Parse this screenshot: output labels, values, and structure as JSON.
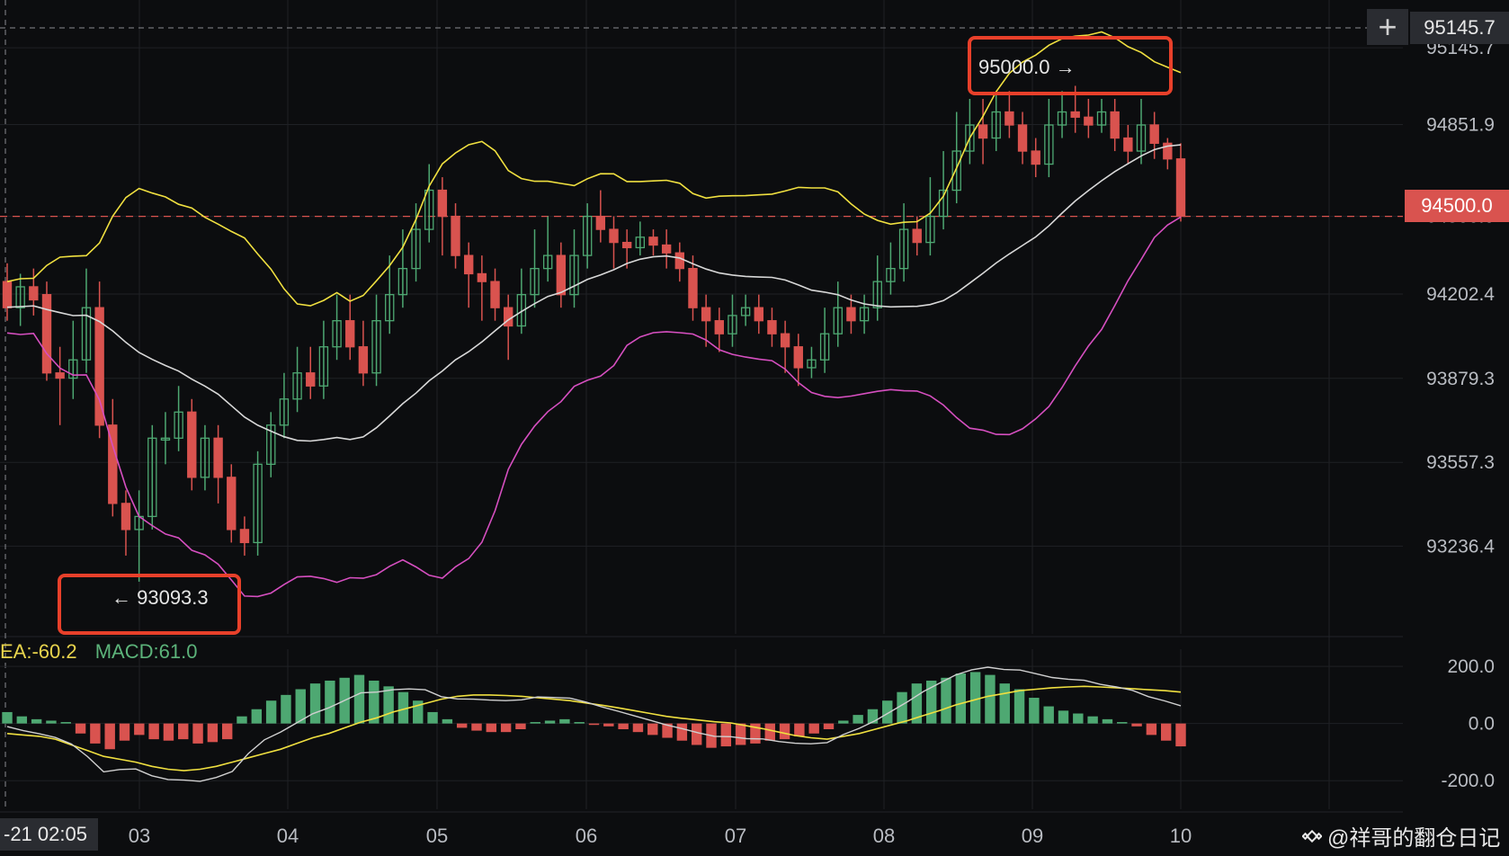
{
  "price_axis": {
    "ticks": [
      "95145.7",
      "94851.9",
      "94500.0",
      "94202.4",
      "93879.3",
      "93557.3",
      "93236.4"
    ]
  },
  "macd_axis": {
    "ticks": [
      "200.0",
      "0.0",
      "-200.0"
    ]
  },
  "time_axis": {
    "cursor_label": "-21 02:05",
    "ticks": [
      "03",
      "04",
      "05",
      "06",
      "07",
      "08",
      "09",
      "10"
    ]
  },
  "current_price_tag": "94500.0",
  "top_price_tag": "95145.7",
  "crosshair_icon": "plus-icon",
  "macd_legend": {
    "dea": "EA:-60.2",
    "macd": "MACD:61.0",
    "dea_color": "#e8d44d",
    "macd_color": "#5cb37a"
  },
  "watermark": "@祥哥的翻仓日记",
  "colors": {
    "up": "#4ea872",
    "down": "#d9534f",
    "bb_upper": "#f0e040",
    "bb_mid": "#d8d8d8",
    "bb_lower": "#d64fc0",
    "callout": "#e8402a"
  },
  "chart_data": [
    {
      "type": "candlestick",
      "title": "",
      "ylim": [
        92900,
        95260
      ],
      "x_labels": [
        "03",
        "04",
        "05",
        "06",
        "07",
        "08",
        "09",
        "10"
      ],
      "overlays": [
        "bollinger-upper",
        "bollinger-middle",
        "bollinger-lower"
      ],
      "annotations": [
        {
          "text": "95000.0 →",
          "value": 95000.0
        },
        {
          "text": "← 93093.3",
          "value": 93093.3
        }
      ],
      "candles": [
        [
          94250,
          94150,
          94320,
          94100
        ],
        [
          94150,
          94230,
          94280,
          94080
        ],
        [
          94230,
          94180,
          94300,
          94120
        ],
        [
          94200,
          93900,
          94250,
          93870
        ],
        [
          93900,
          93880,
          94000,
          93700
        ],
        [
          93880,
          93950,
          94100,
          93800
        ],
        [
          93950,
          94150,
          94300,
          93900
        ],
        [
          94150,
          93700,
          94250,
          93650
        ],
        [
          93700,
          93400,
          93800,
          93350
        ],
        [
          93400,
          93300,
          93450,
          93200
        ],
        [
          93300,
          93350,
          93450,
          93100
        ],
        [
          93350,
          93650,
          93700,
          93300
        ],
        [
          93650,
          93650,
          93750,
          93550
        ],
        [
          93650,
          93750,
          93850,
          93600
        ],
        [
          93750,
          93500,
          93800,
          93450
        ],
        [
          93500,
          93650,
          93700,
          93450
        ],
        [
          93650,
          93500,
          93700,
          93400
        ],
        [
          93500,
          93300,
          93550,
          93250
        ],
        [
          93300,
          93250,
          93350,
          93200
        ],
        [
          93250,
          93550,
          93600,
          93200
        ],
        [
          93550,
          93700,
          93750,
          93500
        ],
        [
          93700,
          93800,
          93900,
          93650
        ],
        [
          93800,
          93900,
          94000,
          93750
        ],
        [
          93900,
          93850,
          94000,
          93800
        ],
        [
          93850,
          94000,
          94100,
          93800
        ],
        [
          94000,
          94100,
          94200,
          93950
        ],
        [
          94100,
          94000,
          94200,
          93950
        ],
        [
          94000,
          93900,
          94100,
          93850
        ],
        [
          93900,
          94100,
          94200,
          93850
        ],
        [
          94100,
          94200,
          94350,
          94050
        ],
        [
          94200,
          94300,
          94450,
          94150
        ],
        [
          94300,
          94450,
          94550,
          94250
        ],
        [
          94450,
          94600,
          94700,
          94400
        ],
        [
          94600,
          94500,
          94650,
          94350
        ],
        [
          94500,
          94350,
          94550,
          94300
        ],
        [
          94350,
          94280,
          94400,
          94150
        ],
        [
          94280,
          94250,
          94350,
          94100
        ],
        [
          94250,
          94150,
          94300,
          94100
        ],
        [
          94150,
          94080,
          94200,
          93950
        ],
        [
          94080,
          94200,
          94300,
          94050
        ],
        [
          94200,
          94300,
          94450,
          94150
        ],
        [
          94300,
          94350,
          94500,
          94250
        ],
        [
          94350,
          94200,
          94400,
          94150
        ],
        [
          94200,
          94350,
          94450,
          94150
        ],
        [
          94350,
          94500,
          94550,
          94300
        ],
        [
          94500,
          94450,
          94600,
          94400
        ],
        [
          94450,
          94400,
          94500,
          94300
        ],
        [
          94400,
          94380,
          94450,
          94300
        ],
        [
          94380,
          94420,
          94480,
          94350
        ],
        [
          94420,
          94390,
          94450,
          94350
        ],
        [
          94390,
          94360,
          94450,
          94300
        ],
        [
          94360,
          94300,
          94400,
          94250
        ],
        [
          94300,
          94150,
          94350,
          94100
        ],
        [
          94150,
          94100,
          94200,
          94000
        ],
        [
          94100,
          94050,
          94150,
          93980
        ],
        [
          94050,
          94120,
          94200,
          94000
        ],
        [
          94120,
          94150,
          94200,
          94080
        ],
        [
          94150,
          94100,
          94200,
          94050
        ],
        [
          94100,
          94050,
          94150,
          94000
        ],
        [
          94050,
          94000,
          94100,
          93900
        ],
        [
          94000,
          93920,
          94050,
          93850
        ],
        [
          93920,
          93950,
          94000,
          93880
        ],
        [
          93950,
          94050,
          94150,
          93900
        ],
        [
          94050,
          94150,
          94250,
          94000
        ],
        [
          94150,
          94100,
          94200,
          94050
        ],
        [
          94100,
          94150,
          94200,
          94050
        ],
        [
          94150,
          94250,
          94350,
          94100
        ],
        [
          94250,
          94300,
          94400,
          94200
        ],
        [
          94300,
          94450,
          94550,
          94250
        ],
        [
          94450,
          94400,
          94500,
          94350
        ],
        [
          94400,
          94500,
          94650,
          94350
        ],
        [
          94500,
          94600,
          94750,
          94450
        ],
        [
          94600,
          94750,
          94900,
          94550
        ],
        [
          94750,
          94850,
          94950,
          94700
        ],
        [
          94850,
          94800,
          94950,
          94700
        ],
        [
          94800,
          94900,
          94980,
          94750
        ],
        [
          94900,
          94850,
          94980,
          94800
        ],
        [
          94850,
          94750,
          94900,
          94700
        ],
        [
          94750,
          94700,
          94800,
          94650
        ],
        [
          94700,
          94850,
          94950,
          94650
        ],
        [
          94850,
          94900,
          94980,
          94800
        ],
        [
          94900,
          94880,
          95000,
          94820
        ],
        [
          94880,
          94850,
          94950,
          94800
        ],
        [
          94850,
          94900,
          94950,
          94820
        ],
        [
          94900,
          94800,
          94950,
          94750
        ],
        [
          94800,
          94750,
          94850,
          94700
        ],
        [
          94750,
          94850,
          94950,
          94700
        ],
        [
          94850,
          94780,
          94900,
          94720
        ],
        [
          94780,
          94720,
          94800,
          94680
        ],
        [
          94720,
          94500,
          94780,
          94480
        ]
      ]
    },
    {
      "type": "macd",
      "title": "",
      "ylim": [
        -300,
        260
      ],
      "series": [
        {
          "name": "DEA",
          "values": [
            -35,
            -40,
            -45,
            -55,
            -75,
            -95,
            -115,
            -125,
            -135,
            -150,
            -160,
            -165,
            -160,
            -150,
            -135,
            -120,
            -105,
            -90,
            -70,
            -50,
            -35,
            -15,
            5,
            20,
            40,
            55,
            70,
            85,
            95,
            100,
            100,
            98,
            95,
            90,
            85,
            80,
            72,
            64,
            55,
            45,
            35,
            25,
            18,
            12,
            6,
            2,
            -8,
            -18,
            -30,
            -42,
            -50,
            -55,
            -45,
            -35,
            -20,
            -5,
            10,
            28,
            45,
            65,
            80,
            95,
            105,
            115,
            120,
            125,
            128,
            130,
            128,
            125,
            122,
            118,
            115,
            110
          ],
          "note": ""
        },
        {
          "name": "MACD",
          "values": []
        }
      ],
      "histogram": [
        40,
        25,
        15,
        10,
        5,
        -35,
        -70,
        -90,
        -60,
        -40,
        -55,
        -60,
        -55,
        -70,
        -65,
        -55,
        25,
        50,
        80,
        100,
        120,
        140,
        150,
        160,
        170,
        150,
        130,
        110,
        80,
        40,
        15,
        -15,
        -25,
        -30,
        -30,
        -20,
        5,
        10,
        15,
        5,
        -5,
        -10,
        -20,
        -30,
        -40,
        -50,
        -60,
        -75,
        -85,
        -80,
        -75,
        -70,
        -60,
        -55,
        -45,
        -35,
        -20,
        10,
        30,
        50,
        80,
        110,
        140,
        150,
        160,
        175,
        180,
        170,
        140,
        120,
        90,
        60,
        45,
        35,
        25,
        15,
        5,
        -10,
        -40,
        -60,
        -80
      ]
    }
  ]
}
